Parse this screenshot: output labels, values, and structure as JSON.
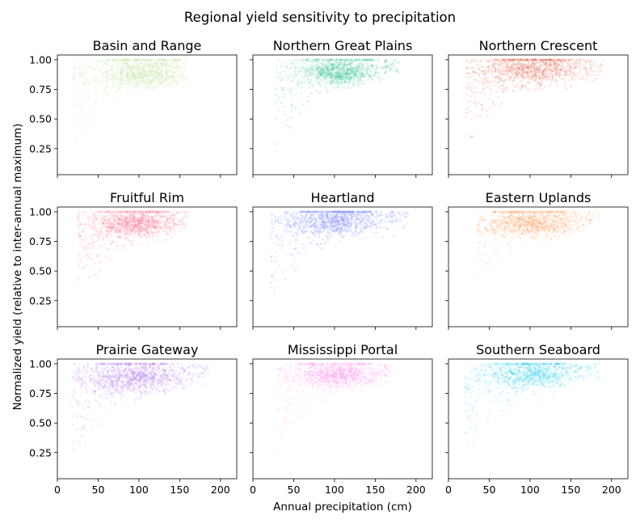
{
  "figure": {
    "title": "Regional yield sensitivity to precipitation",
    "xlabel": "Annual precipitation (cm)",
    "ylabel": "Normalized yield (relative to inter-annual maximum)"
  },
  "chart_data": {
    "type": "scatter",
    "layout": "3x3 grid, shared x and y axes",
    "xlim": [
      0,
      220
    ],
    "ylim": [
      0.03,
      1.04
    ],
    "xticks": [
      0,
      50,
      100,
      150,
      200
    ],
    "yticks": [
      0.25,
      0.5,
      0.75,
      1.0
    ],
    "xtick_labels": [
      "0",
      "50",
      "100",
      "150",
      "200"
    ],
    "ytick_labels": [
      "0.25",
      "0.50",
      "0.75",
      "1.00"
    ],
    "grid": false,
    "point_alpha": 0.12,
    "panels": [
      {
        "title": "Basin and Range",
        "color": "#b8dd8c",
        "center": [
          105,
          0.88
        ],
        "spread": [
          28,
          0.1
        ],
        "x_range": [
          18,
          160
        ],
        "low_edge": [
          [
            20,
            0.12
          ],
          [
            40,
            0.4
          ],
          [
            60,
            0.6
          ],
          [
            90,
            0.75
          ],
          [
            150,
            0.85
          ]
        ]
      },
      {
        "title": "Northern Great Plains",
        "color": "#22c08e",
        "center": [
          105,
          0.89
        ],
        "spread": [
          22,
          0.08
        ],
        "x_range": [
          28,
          180
        ],
        "low_edge": [
          [
            30,
            0.15
          ],
          [
            55,
            0.45
          ],
          [
            75,
            0.65
          ],
          [
            110,
            0.78
          ],
          [
            170,
            0.85
          ]
        ]
      },
      {
        "title": "Northern Crescent",
        "color": "#e8503a",
        "center": [
          100,
          0.92
        ],
        "spread": [
          32,
          0.1
        ],
        "x_range": [
          20,
          190
        ],
        "low_edge": [
          [
            22,
            0.2
          ],
          [
            45,
            0.45
          ],
          [
            70,
            0.62
          ],
          [
            110,
            0.75
          ],
          [
            190,
            0.85
          ]
        ]
      },
      {
        "title": "Fruitful Rim",
        "color": "#ff5e78",
        "center": [
          95,
          0.9
        ],
        "spread": [
          25,
          0.08
        ],
        "x_range": [
          25,
          160
        ],
        "low_edge": [
          [
            25,
            0.3
          ],
          [
            45,
            0.42
          ],
          [
            70,
            0.6
          ],
          [
            110,
            0.75
          ],
          [
            160,
            0.85
          ]
        ]
      },
      {
        "title": "Heartland",
        "color": "#6270ff",
        "center": [
          100,
          0.92
        ],
        "spread": [
          30,
          0.09
        ],
        "x_range": [
          22,
          190
        ],
        "low_edge": [
          [
            22,
            0.15
          ],
          [
            45,
            0.4
          ],
          [
            65,
            0.6
          ],
          [
            100,
            0.75
          ],
          [
            190,
            0.85
          ]
        ]
      },
      {
        "title": "Eastern Uplands",
        "color": "#ff9548",
        "center": [
          100,
          0.9
        ],
        "spread": [
          28,
          0.08
        ],
        "x_range": [
          35,
          185
        ],
        "low_edge": [
          [
            35,
            0.3
          ],
          [
            55,
            0.5
          ],
          [
            75,
            0.65
          ],
          [
            110,
            0.78
          ],
          [
            185,
            0.87
          ]
        ]
      },
      {
        "title": "Prairie Gateway",
        "color": "#a55cf0",
        "center": [
          90,
          0.88
        ],
        "spread": [
          32,
          0.1
        ],
        "x_range": [
          18,
          185
        ],
        "low_edge": [
          [
            20,
            0.1
          ],
          [
            40,
            0.35
          ],
          [
            60,
            0.55
          ],
          [
            90,
            0.72
          ],
          [
            180,
            0.85
          ]
        ]
      },
      {
        "title": "Mississippi Portal",
        "color": "#ff88f0",
        "center": [
          100,
          0.9
        ],
        "spread": [
          25,
          0.07
        ],
        "x_range": [
          30,
          170
        ],
        "low_edge": [
          [
            30,
            0.18
          ],
          [
            50,
            0.4
          ],
          [
            70,
            0.6
          ],
          [
            110,
            0.76
          ],
          [
            170,
            0.85
          ]
        ]
      },
      {
        "title": "Southern Seaboard",
        "color": "#22cdee",
        "center": [
          100,
          0.91
        ],
        "spread": [
          28,
          0.09
        ],
        "x_range": [
          20,
          185
        ],
        "low_edge": [
          [
            20,
            0.2
          ],
          [
            45,
            0.38
          ],
          [
            65,
            0.55
          ],
          [
            100,
            0.72
          ],
          [
            185,
            0.85
          ]
        ]
      }
    ]
  }
}
